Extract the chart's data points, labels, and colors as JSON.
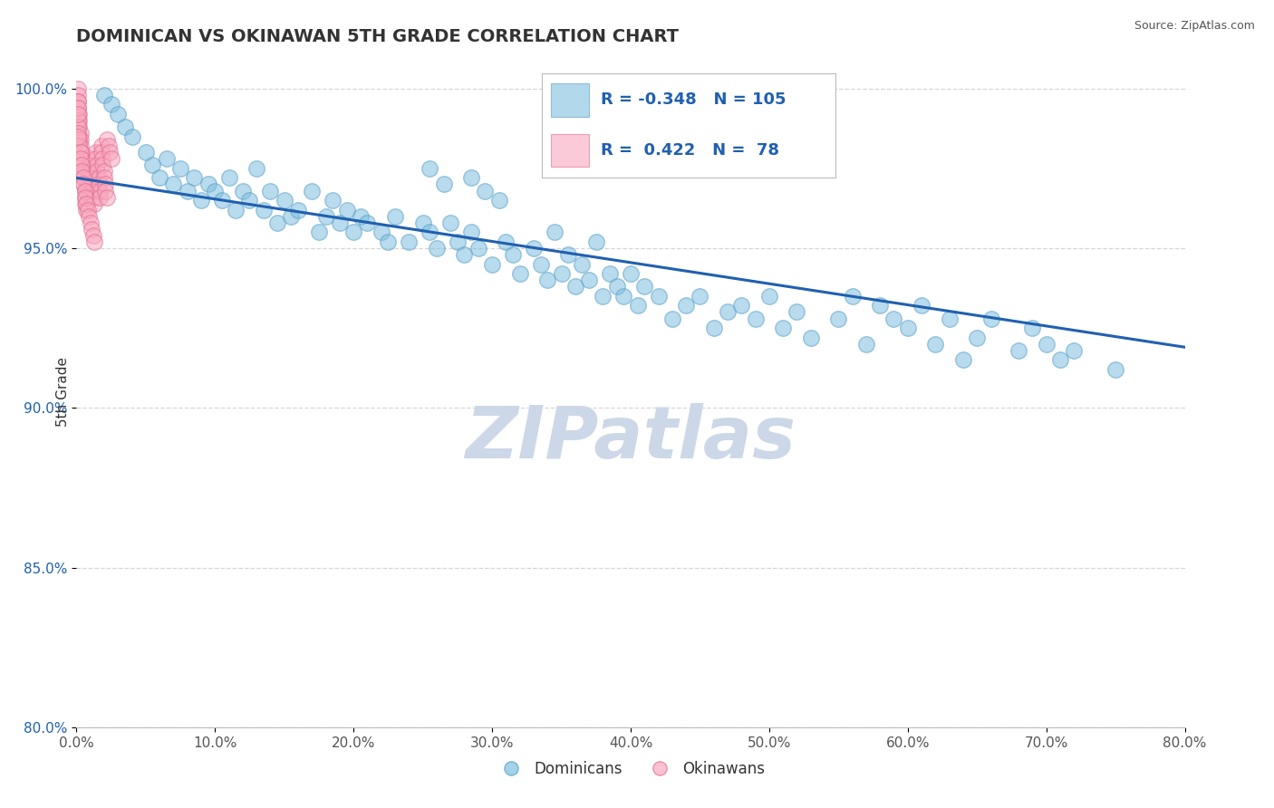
{
  "title": "DOMINICAN VS OKINAWAN 5TH GRADE CORRELATION CHART",
  "source": "Source: ZipAtlas.com",
  "legend_blue_label": "Dominicans",
  "legend_pink_label": "Okinawans",
  "ylabel": "5th Grade",
  "xmin": 0.0,
  "xmax": 0.8,
  "ymin": 0.8,
  "ymax": 1.01,
  "yticks": [
    0.8,
    0.85,
    0.9,
    0.95,
    1.0
  ],
  "xticks": [
    0.0,
    0.1,
    0.2,
    0.3,
    0.4,
    0.5,
    0.6,
    0.7,
    0.8
  ],
  "blue_R": -0.348,
  "blue_N": 105,
  "pink_R": 0.422,
  "pink_N": 78,
  "blue_color": "#7fbfdf",
  "blue_edge": "#5aa0c8",
  "pink_color": "#f9a8c0",
  "pink_edge": "#e07090",
  "trend_color": "#2060b0",
  "grid_color": "#cccccc",
  "title_color": "#333333",
  "ytick_color": "#2060b0",
  "xtick_color": "#555555",
  "legend_text_color": "#2060b0",
  "watermark_color": "#ccd8e8",
  "trend_x0": 0.0,
  "trend_y0": 0.972,
  "trend_x1": 0.8,
  "trend_y1": 0.919,
  "blue_scatter_x": [
    0.02,
    0.025,
    0.03,
    0.035,
    0.04,
    0.05,
    0.055,
    0.06,
    0.065,
    0.07,
    0.075,
    0.08,
    0.085,
    0.09,
    0.095,
    0.1,
    0.105,
    0.11,
    0.115,
    0.12,
    0.125,
    0.13,
    0.135,
    0.14,
    0.145,
    0.15,
    0.155,
    0.16,
    0.17,
    0.175,
    0.18,
    0.185,
    0.19,
    0.195,
    0.2,
    0.205,
    0.21,
    0.22,
    0.225,
    0.23,
    0.24,
    0.25,
    0.255,
    0.26,
    0.27,
    0.275,
    0.28,
    0.285,
    0.29,
    0.3,
    0.31,
    0.315,
    0.32,
    0.33,
    0.335,
    0.34,
    0.345,
    0.35,
    0.355,
    0.36,
    0.365,
    0.37,
    0.375,
    0.38,
    0.385,
    0.39,
    0.395,
    0.4,
    0.405,
    0.41,
    0.42,
    0.43,
    0.44,
    0.45,
    0.46,
    0.47,
    0.48,
    0.49,
    0.5,
    0.51,
    0.52,
    0.53,
    0.55,
    0.56,
    0.57,
    0.58,
    0.59,
    0.6,
    0.61,
    0.62,
    0.63,
    0.64,
    0.65,
    0.66,
    0.68,
    0.69,
    0.7,
    0.71,
    0.72,
    0.75,
    0.285,
    0.295,
    0.305,
    0.255,
    0.265
  ],
  "blue_scatter_y": [
    0.998,
    0.995,
    0.992,
    0.988,
    0.985,
    0.98,
    0.976,
    0.972,
    0.978,
    0.97,
    0.975,
    0.968,
    0.972,
    0.965,
    0.97,
    0.968,
    0.965,
    0.972,
    0.962,
    0.968,
    0.965,
    0.975,
    0.962,
    0.968,
    0.958,
    0.965,
    0.96,
    0.962,
    0.968,
    0.955,
    0.96,
    0.965,
    0.958,
    0.962,
    0.955,
    0.96,
    0.958,
    0.955,
    0.952,
    0.96,
    0.952,
    0.958,
    0.955,
    0.95,
    0.958,
    0.952,
    0.948,
    0.955,
    0.95,
    0.945,
    0.952,
    0.948,
    0.942,
    0.95,
    0.945,
    0.94,
    0.955,
    0.942,
    0.948,
    0.938,
    0.945,
    0.94,
    0.952,
    0.935,
    0.942,
    0.938,
    0.935,
    0.942,
    0.932,
    0.938,
    0.935,
    0.928,
    0.932,
    0.935,
    0.925,
    0.93,
    0.932,
    0.928,
    0.935,
    0.925,
    0.93,
    0.922,
    0.928,
    0.935,
    0.92,
    0.932,
    0.928,
    0.925,
    0.932,
    0.92,
    0.928,
    0.915,
    0.922,
    0.928,
    0.918,
    0.925,
    0.92,
    0.915,
    0.918,
    0.912,
    0.972,
    0.968,
    0.965,
    0.975,
    0.97
  ],
  "pink_scatter_x": [
    0.001,
    0.001,
    0.001,
    0.001,
    0.002,
    0.002,
    0.002,
    0.003,
    0.003,
    0.003,
    0.004,
    0.004,
    0.004,
    0.005,
    0.005,
    0.005,
    0.006,
    0.006,
    0.006,
    0.007,
    0.007,
    0.008,
    0.008,
    0.009,
    0.009,
    0.01,
    0.01,
    0.011,
    0.011,
    0.012,
    0.012,
    0.013,
    0.013,
    0.014,
    0.014,
    0.015,
    0.015,
    0.016,
    0.016,
    0.017,
    0.017,
    0.018,
    0.018,
    0.019,
    0.019,
    0.02,
    0.02,
    0.021,
    0.021,
    0.022,
    0.022,
    0.023,
    0.024,
    0.025,
    0.001,
    0.001,
    0.001,
    0.002,
    0.002,
    0.003,
    0.003,
    0.004,
    0.004,
    0.005,
    0.005,
    0.006,
    0.006,
    0.007,
    0.008,
    0.009,
    0.01,
    0.011,
    0.012,
    0.013,
    0.001,
    0.001,
    0.001,
    0.001
  ],
  "pink_scatter_y": [
    1.0,
    0.998,
    0.996,
    0.994,
    0.992,
    0.99,
    0.988,
    0.986,
    0.984,
    0.982,
    0.98,
    0.978,
    0.976,
    0.974,
    0.972,
    0.97,
    0.968,
    0.966,
    0.964,
    0.962,
    0.975,
    0.973,
    0.971,
    0.969,
    0.967,
    0.978,
    0.976,
    0.974,
    0.972,
    0.97,
    0.968,
    0.966,
    0.964,
    0.98,
    0.978,
    0.976,
    0.974,
    0.972,
    0.97,
    0.968,
    0.966,
    0.982,
    0.98,
    0.978,
    0.976,
    0.974,
    0.972,
    0.97,
    0.968,
    0.966,
    0.984,
    0.982,
    0.98,
    0.978,
    0.99,
    0.988,
    0.986,
    0.984,
    0.982,
    0.98,
    0.978,
    0.976,
    0.974,
    0.972,
    0.97,
    0.968,
    0.966,
    0.964,
    0.962,
    0.96,
    0.958,
    0.956,
    0.954,
    0.952,
    0.996,
    0.994,
    0.992,
    0.985
  ]
}
